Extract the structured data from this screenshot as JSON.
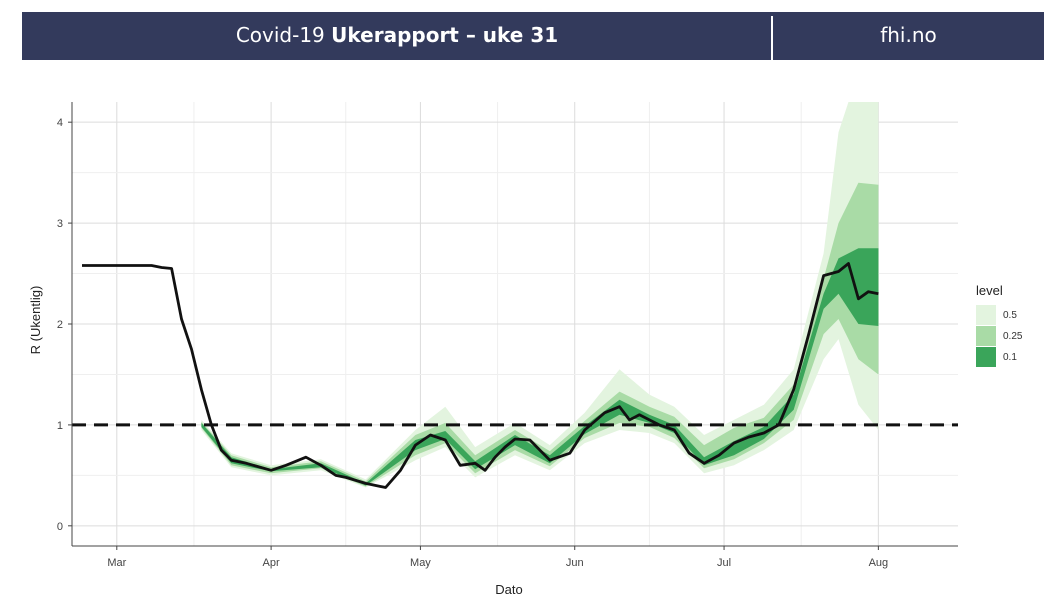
{
  "header": {
    "title_prefix": "Covid-19 ",
    "title_bold": "Ukerapport – uke 31",
    "site": "fhi.no"
  },
  "colors": {
    "header_bg": "#333a5c",
    "band_outer": "#e3f4df",
    "band_mid": "#a9dba6",
    "band_inner": "#3aa55a",
    "line": "#111111"
  },
  "chart_data": {
    "type": "line",
    "xlabel": "Dato",
    "ylabel": "R (Ukentlig)",
    "x_ticks": [
      "Mar",
      "Apr",
      "May",
      "Jun",
      "Jul",
      "Aug"
    ],
    "y_ticks": [
      "0",
      "1",
      "2",
      "3",
      "4"
    ],
    "xlim": [
      "2020-02-21",
      "2020-08-17"
    ],
    "ylim": [
      -0.2,
      4.2
    ],
    "grid": true,
    "reference_line": {
      "y": 1,
      "style": "dashed"
    },
    "legend": {
      "title": "level",
      "placement": "right",
      "entries": [
        {
          "label": "0.5",
          "color": "#e3f4df"
        },
        {
          "label": "0.25",
          "color": "#a9dba6"
        },
        {
          "label": "0.1",
          "color": "#3aa55a"
        }
      ]
    },
    "series": [
      {
        "x": [
          "2020-02-23",
          "2020-03-08",
          "2020-03-10",
          "2020-03-12",
          "2020-03-14",
          "2020-03-16",
          "2020-03-18",
          "2020-03-20",
          "2020-03-22",
          "2020-03-24",
          "2020-03-27",
          "2020-04-01",
          "2020-04-04",
          "2020-04-08",
          "2020-04-11",
          "2020-04-14",
          "2020-04-16",
          "2020-04-20",
          "2020-04-24",
          "2020-04-27",
          "2020-04-30",
          "2020-05-03",
          "2020-05-06",
          "2020-05-09",
          "2020-05-12",
          "2020-05-14",
          "2020-05-16",
          "2020-05-18",
          "2020-05-20",
          "2020-05-23",
          "2020-05-27",
          "2020-05-31",
          "2020-06-03",
          "2020-06-07",
          "2020-06-10",
          "2020-06-12",
          "2020-06-14",
          "2020-06-16",
          "2020-06-18",
          "2020-06-21",
          "2020-06-24",
          "2020-06-27",
          "2020-06-30",
          "2020-07-03",
          "2020-07-06",
          "2020-07-09",
          "2020-07-12",
          "2020-07-15",
          "2020-07-18",
          "2020-07-21",
          "2020-07-24",
          "2020-07-26",
          "2020-07-28",
          "2020-07-30",
          "2020-08-01"
        ],
        "y": [
          2.58,
          2.58,
          2.56,
          2.55,
          2.05,
          1.75,
          1.35,
          1.0,
          0.75,
          0.65,
          0.62,
          0.55,
          0.6,
          0.68,
          0.6,
          0.5,
          0.48,
          0.42,
          0.38,
          0.55,
          0.8,
          0.9,
          0.85,
          0.6,
          0.62,
          0.55,
          0.68,
          0.78,
          0.86,
          0.85,
          0.65,
          0.72,
          0.95,
          1.12,
          1.18,
          1.05,
          1.1,
          1.05,
          1.0,
          0.95,
          0.72,
          0.62,
          0.7,
          0.82,
          0.88,
          0.92,
          1.0,
          1.35,
          1.9,
          2.48,
          2.52,
          2.6,
          2.25,
          2.32,
          2.3
        ]
      }
    ],
    "bands": [
      {
        "level": "0.5",
        "x": [
          "2020-03-18",
          "2020-03-24",
          "2020-04-01",
          "2020-04-11",
          "2020-04-20",
          "2020-04-30",
          "2020-05-06",
          "2020-05-12",
          "2020-05-20",
          "2020-05-27",
          "2020-06-03",
          "2020-06-10",
          "2020-06-16",
          "2020-06-21",
          "2020-06-27",
          "2020-07-03",
          "2020-07-09",
          "2020-07-15",
          "2020-07-21",
          "2020-07-24",
          "2020-07-28",
          "2020-08-01"
        ],
        "low": [
          0.95,
          0.58,
          0.5,
          0.55,
          0.38,
          0.65,
          0.78,
          0.48,
          0.7,
          0.55,
          0.82,
          0.95,
          0.92,
          0.82,
          0.52,
          0.6,
          0.75,
          0.95,
          1.65,
          1.85,
          1.2,
          0.95
        ],
        "high": [
          1.05,
          0.72,
          0.6,
          0.66,
          0.46,
          0.95,
          1.18,
          0.78,
          1.02,
          0.8,
          1.12,
          1.55,
          1.3,
          1.18,
          0.9,
          1.05,
          1.2,
          1.55,
          2.7,
          3.9,
          4.5,
          4.5
        ]
      },
      {
        "level": "0.25",
        "x": [
          "2020-03-18",
          "2020-03-24",
          "2020-04-01",
          "2020-04-11",
          "2020-04-20",
          "2020-04-30",
          "2020-05-06",
          "2020-05-12",
          "2020-05-20",
          "2020-05-27",
          "2020-06-03",
          "2020-06-10",
          "2020-06-16",
          "2020-06-21",
          "2020-06-27",
          "2020-07-03",
          "2020-07-09",
          "2020-07-15",
          "2020-07-21",
          "2020-07-24",
          "2020-07-28",
          "2020-08-01"
        ],
        "low": [
          0.97,
          0.6,
          0.52,
          0.57,
          0.39,
          0.7,
          0.82,
          0.52,
          0.75,
          0.59,
          0.87,
          1.02,
          0.98,
          0.87,
          0.57,
          0.66,
          0.82,
          1.05,
          1.9,
          2.05,
          1.65,
          1.5
        ],
        "high": [
          1.03,
          0.7,
          0.58,
          0.64,
          0.44,
          0.9,
          1.02,
          0.7,
          0.95,
          0.74,
          1.04,
          1.33,
          1.18,
          1.08,
          0.8,
          0.97,
          1.07,
          1.4,
          2.45,
          3.0,
          3.4,
          3.38
        ]
      },
      {
        "level": "0.1",
        "x": [
          "2020-03-18",
          "2020-03-24",
          "2020-04-01",
          "2020-04-11",
          "2020-04-20",
          "2020-04-30",
          "2020-05-06",
          "2020-05-12",
          "2020-05-20",
          "2020-05-27",
          "2020-06-03",
          "2020-06-10",
          "2020-06-16",
          "2020-06-21",
          "2020-06-27",
          "2020-07-03",
          "2020-07-09",
          "2020-07-15",
          "2020-07-21",
          "2020-07-24",
          "2020-07-28",
          "2020-08-01"
        ],
        "low": [
          0.98,
          0.62,
          0.54,
          0.58,
          0.4,
          0.75,
          0.86,
          0.56,
          0.8,
          0.62,
          0.91,
          1.1,
          1.02,
          0.92,
          0.6,
          0.7,
          0.86,
          1.15,
          2.15,
          2.3,
          2.0,
          1.98
        ],
        "high": [
          1.02,
          0.68,
          0.56,
          0.62,
          0.42,
          0.85,
          0.94,
          0.64,
          0.9,
          0.7,
          0.99,
          1.25,
          1.1,
          1.0,
          0.68,
          0.84,
          0.98,
          1.3,
          2.3,
          2.65,
          2.75,
          2.75
        ]
      }
    ]
  }
}
